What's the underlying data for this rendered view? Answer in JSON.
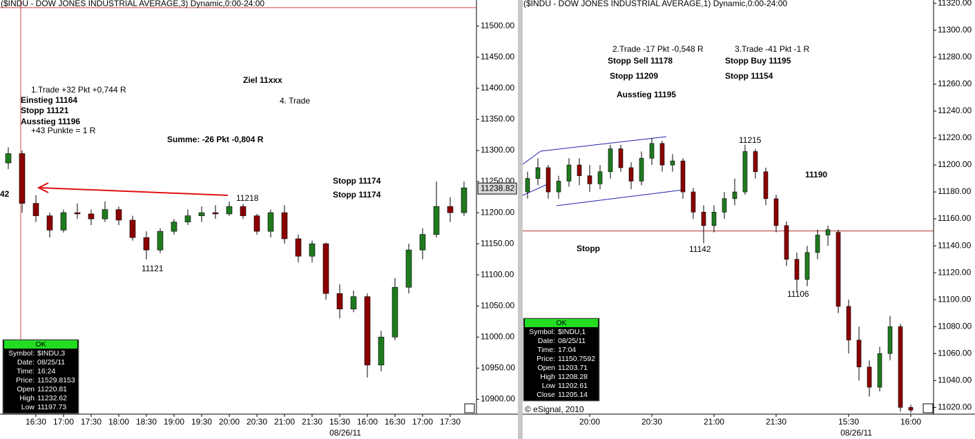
{
  "chart_data": [
    {
      "type": "candlestick",
      "title": "($INDU - DOW JONES INDUSTRIAL AVERAGE,3) Dynamic,0:00-24:00",
      "categories": [
        null,
        null,
        "16:30",
        null,
        "17:00",
        null,
        "17:30",
        null,
        "18:00",
        null,
        "18:30",
        null,
        "19:00",
        null,
        "19:30",
        null,
        "20:00",
        null,
        "20:30",
        null,
        "21:00",
        null,
        "21:30",
        null,
        "15:30",
        null,
        "16:00",
        null,
        "16:30",
        null,
        "17:00",
        null,
        "17:30",
        null
      ],
      "date_label": "08/26/11",
      "open": [
        11280,
        11295,
        11215,
        11195,
        11172,
        11200,
        11198,
        11190,
        11205,
        11188,
        11160,
        11140,
        11170,
        11185,
        11195,
        11200,
        11198,
        11210,
        11195,
        11170,
        11200,
        11158,
        11130,
        11150,
        11070,
        11045,
        11065,
        10955,
        11000,
        11080,
        11140,
        11165,
        11210,
        11200
      ],
      "high": [
        11305,
        11300,
        11228,
        11200,
        11205,
        11215,
        11205,
        11218,
        11210,
        11195,
        11170,
        11175,
        11190,
        11205,
        11210,
        11212,
        11218,
        11214,
        11198,
        11205,
        11212,
        11165,
        11155,
        11152,
        11085,
        11075,
        11070,
        11010,
        11095,
        11150,
        11175,
        11250,
        11225,
        11250
      ],
      "low": [
        11270,
        11200,
        11185,
        11160,
        11168,
        11190,
        11180,
        11185,
        11180,
        11155,
        11125,
        11135,
        11165,
        11180,
        11185,
        11190,
        11195,
        11190,
        11165,
        11160,
        11150,
        11120,
        11120,
        11060,
        11030,
        11040,
        10935,
        10945,
        10995,
        11070,
        11125,
        11160,
        11185,
        11195
      ],
      "close": [
        11295,
        11215,
        11195,
        11172,
        11200,
        11198,
        11190,
        11205,
        11188,
        11160,
        11140,
        11170,
        11185,
        11195,
        11200,
        11198,
        11210,
        11195,
        11170,
        11200,
        11158,
        11130,
        11150,
        11070,
        11045,
        11065,
        10955,
        11000,
        11080,
        11140,
        11165,
        11210,
        11200,
        11240
      ],
      "up_color": "#1f7a1f",
      "down_color": "#8b0000",
      "ylim": [
        10876,
        11542
      ],
      "yticks": [
        {
          "value": 10900,
          "label": "10900.00"
        },
        {
          "value": 10950,
          "label": "10950.00"
        },
        {
          "value": 11000,
          "label": "11000.00"
        },
        {
          "value": 11050,
          "label": "11050.00"
        },
        {
          "value": 11100,
          "label": "11100.00"
        },
        {
          "value": 11150,
          "label": "11150.00"
        },
        {
          "value": 11200,
          "label": "11200.00"
        },
        {
          "value": 11250,
          "label": "11250.00"
        },
        {
          "value": 11300,
          "label": "11300.00"
        },
        {
          "value": 11350,
          "label": "11350.00"
        },
        {
          "value": 11400,
          "label": "11400.00"
        },
        {
          "value": 11450,
          "label": "11450.00"
        },
        {
          "value": 11500,
          "label": "11500.00"
        }
      ],
      "last_price": 11238.82,
      "annotations": [
        {
          "text": "1.Trade +32 Pkt +0,744 R",
          "color": "#000000"
        },
        {
          "text": "Einstieg 11164",
          "color": "#1f8a1f"
        },
        {
          "text": "Stopp 11121",
          "color": "#1f8a1f"
        },
        {
          "text": "Ausstieg 11196",
          "color": "#1f8a1f"
        },
        {
          "text": "+43 Punkte = 1 R",
          "color": "#000000"
        },
        {
          "text": "Ziel 11xxx",
          "color": "#1f8a1f"
        },
        {
          "text": "4. Trade",
          "color": "#000000"
        },
        {
          "text": "Summe: -26 Pkt -0,804 R",
          "color": "#000000"
        },
        {
          "text": "Stopp 11174",
          "color": "#1515d0"
        },
        {
          "text": "Stopp 11174",
          "color": "#1515d0"
        },
        {
          "text": "11218",
          "color": "#000000"
        },
        {
          "text": "11121",
          "color": "#000000"
        },
        {
          "text": "42",
          "color": "#e01010"
        }
      ],
      "data_window": {
        "status": "OK",
        "rows": [
          [
            "Symbol:",
            "$INDU,3"
          ],
          [
            "Date:",
            "08/25/11"
          ],
          [
            "Time:",
            "16:24"
          ],
          [
            "Price:",
            "11529.8153"
          ],
          [
            "Open",
            "11220.81"
          ],
          [
            "High",
            "11232.62"
          ],
          [
            "Low",
            "11197.73"
          ]
        ]
      }
    },
    {
      "type": "candlestick",
      "title": "($INDU - DOW JONES INDUSTRIAL AVERAGE,1) Dynamic,0:00-24:00",
      "categories": [
        null,
        null,
        null,
        null,
        null,
        null,
        "20:00",
        null,
        null,
        null,
        null,
        null,
        "20:30",
        null,
        null,
        null,
        null,
        null,
        "21:00",
        null,
        null,
        null,
        null,
        null,
        "21:30",
        null,
        null,
        null,
        null,
        null,
        null,
        "15:30",
        null,
        null,
        null,
        null,
        null,
        "16:00"
      ],
      "date_label": "08/26/11",
      "open": [
        11180,
        11190,
        11198,
        11180,
        11188,
        11200,
        11192,
        11186,
        11195,
        11212,
        11198,
        11188,
        11205,
        11216,
        11200,
        11203,
        11180,
        11165,
        11155,
        11165,
        11175,
        11180,
        11210,
        11195,
        11175,
        11155,
        11130,
        11115,
        11135,
        11148,
        11150,
        11095,
        11070,
        11050,
        11035,
        11060,
        11080,
        11020
      ],
      "high": [
        11195,
        11205,
        11200,
        11192,
        11205,
        11205,
        11200,
        11200,
        11215,
        11215,
        11202,
        11210,
        11220,
        11218,
        11208,
        11205,
        11183,
        11170,
        11170,
        11180,
        11190,
        11215,
        11212,
        11198,
        11178,
        11158,
        11135,
        11140,
        11152,
        11155,
        11152,
        11100,
        11080,
        11055,
        11065,
        11088,
        11082,
        11022
      ],
      "low": [
        11175,
        11185,
        11175,
        11175,
        11184,
        11185,
        11180,
        11182,
        11190,
        11195,
        11182,
        11185,
        11200,
        11195,
        11195,
        11175,
        11160,
        11142,
        11150,
        11160,
        11170,
        11178,
        11190,
        11170,
        11150,
        11125,
        11106,
        11110,
        11130,
        11140,
        11090,
        11060,
        11040,
        11028,
        11032,
        11055,
        11017,
        11016
      ],
      "close": [
        11190,
        11198,
        11180,
        11188,
        11200,
        11192,
        11186,
        11195,
        11212,
        11198,
        11188,
        11205,
        11216,
        11200,
        11203,
        11180,
        11165,
        11155,
        11165,
        11175,
        11180,
        11210,
        11195,
        11175,
        11155,
        11130,
        11115,
        11135,
        11148,
        11152,
        11095,
        11070,
        11050,
        11035,
        11060,
        11080,
        11020,
        11018
      ],
      "up_color": "#1f7a1f",
      "down_color": "#8b0000",
      "ylim": [
        11015,
        11322.5
      ],
      "yticks": [
        {
          "value": 11020,
          "label": "11020.00"
        },
        {
          "value": 11040,
          "label": "11040.00"
        },
        {
          "value": 11060,
          "label": "11060.00"
        },
        {
          "value": 11080,
          "label": "11080.00"
        },
        {
          "value": 11100,
          "label": "11100.00"
        },
        {
          "value": 11120,
          "label": "11120.00"
        },
        {
          "value": 11140,
          "label": "11140.00"
        },
        {
          "value": 11160,
          "label": "11160.00"
        },
        {
          "value": 11180,
          "label": "11180.00"
        },
        {
          "value": 11200,
          "label": "11200.00"
        },
        {
          "value": 11220,
          "label": "11220.00"
        },
        {
          "value": 11240,
          "label": "11240.00"
        },
        {
          "value": 11260,
          "label": "11260.00"
        },
        {
          "value": 11280,
          "label": "11280.00"
        },
        {
          "value": 11300,
          "label": "11300.00"
        },
        {
          "value": 11320,
          "label": "11320.00"
        }
      ],
      "hline": 11151,
      "annotations": [
        {
          "text": "2.Trade -17 Pkt -0,548 R",
          "color": "#000000"
        },
        {
          "text": "Stopp Sell 11178",
          "color": "#e01010"
        },
        {
          "text": "Stopp 11209",
          "color": "#e01010"
        },
        {
          "text": "Ausstieg 11195",
          "color": "#e01010"
        },
        {
          "text": "3.Trade -41 Pkt -1 R",
          "color": "#000000"
        },
        {
          "text": "Stopp Buy 11195",
          "color": "#1f8a1f"
        },
        {
          "text": "Stopp 11154",
          "color": "#1f8a1f"
        },
        {
          "text": "11215",
          "color": "#000000"
        },
        {
          "text": "11190",
          "color": "#e01010"
        },
        {
          "text": "Stopp",
          "color": "#1f8a1f"
        },
        {
          "text": "11142",
          "color": "#000000"
        },
        {
          "text": "11106",
          "color": "#000000"
        },
        {
          "text": "© eSignal, 2010",
          "color": "#000000"
        }
      ],
      "data_window": {
        "status": "OK",
        "rows": [
          [
            "Symbol:",
            "$INDU,1"
          ],
          [
            "Date:",
            "08/25/11"
          ],
          [
            "Time:",
            "17:04"
          ],
          [
            "Price:",
            "11150.7592"
          ],
          [
            "Open",
            "11203.71"
          ],
          [
            "High",
            "11208.28"
          ],
          [
            "Low",
            "11202.61"
          ],
          [
            "Close",
            "11205.14"
          ]
        ]
      }
    }
  ]
}
